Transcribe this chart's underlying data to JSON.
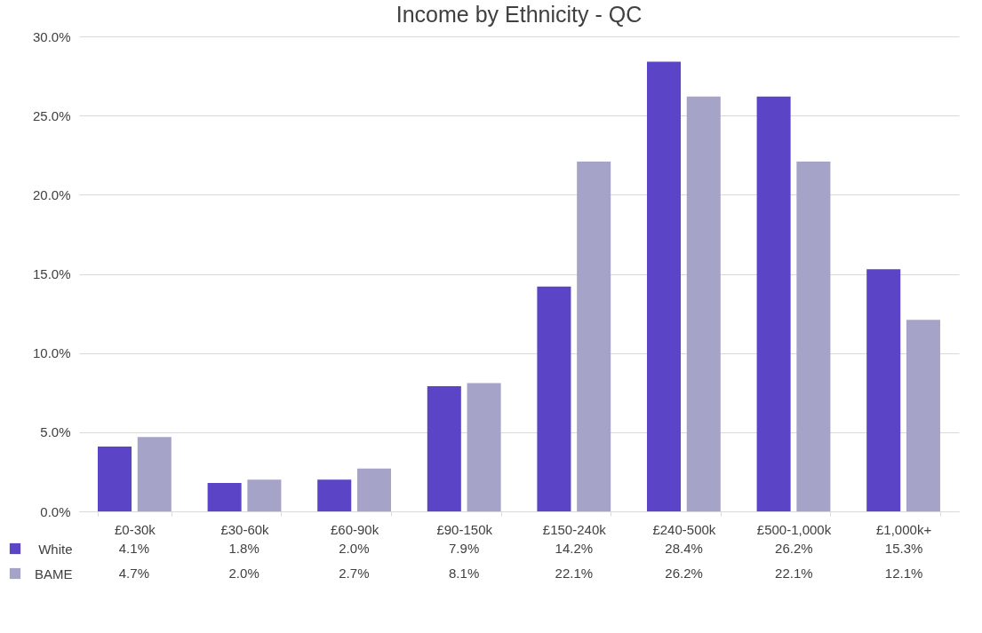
{
  "chart_data": {
    "type": "bar",
    "title": "Income by Ethnicity - QC",
    "categories": [
      "£0-30k",
      "£30-60k",
      "£60-90k",
      "£90-150k",
      "£150-240k",
      "£240-500k",
      "£500-1,000k",
      "£1,000k+"
    ],
    "series": [
      {
        "name": "White",
        "color": "#5b45c6",
        "values": [
          4.1,
          1.8,
          2.0,
          7.9,
          14.2,
          28.4,
          26.2,
          15.3
        ],
        "value_labels": [
          "4.1%",
          "1.8%",
          "2.0%",
          "7.9%",
          "14.2%",
          "28.4%",
          "26.2%",
          "15.3%"
        ]
      },
      {
        "name": "BAME",
        "color": "#a6a3c8",
        "values": [
          4.7,
          2.0,
          2.7,
          8.1,
          22.1,
          26.2,
          22.1,
          12.1
        ],
        "value_labels": [
          "4.7%",
          "2.0%",
          "2.7%",
          "8.1%",
          "22.1%",
          "26.2%",
          "22.1%",
          "12.1%"
        ]
      }
    ],
    "ylim": [
      0,
      30
    ],
    "yticks": [
      {
        "value": 0,
        "label": "0.0%"
      },
      {
        "value": 5,
        "label": "5.0%"
      },
      {
        "value": 10,
        "label": "10.0%"
      },
      {
        "value": 15,
        "label": "15.0%"
      },
      {
        "value": 20,
        "label": "20.0%"
      },
      {
        "value": 25,
        "label": "25.0%"
      },
      {
        "value": 30,
        "label": "30.0%"
      }
    ],
    "grid": "y",
    "legend": "bottom left"
  }
}
